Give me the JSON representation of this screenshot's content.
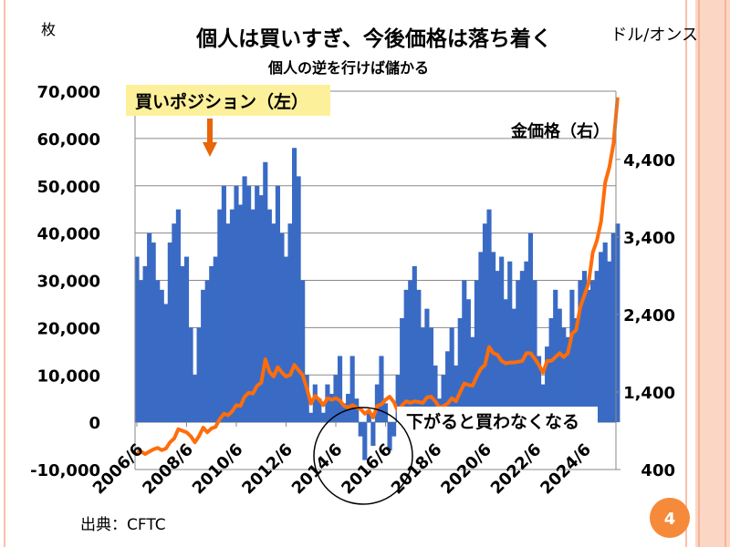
{
  "slide": {
    "page_number": "4",
    "source": "出典：CFTC",
    "accent_color": "#f58a3a",
    "border_color": "#f9c0a8"
  },
  "chart_data": {
    "type": "bar+line",
    "title": "個人は買いすぎ、今後価格は落ち着く",
    "subtitle": "個人の逆を行けば儲かる",
    "y_left_unit": "枚",
    "y_right_unit": "ドル/オンス",
    "ylim_left": [
      -10000,
      70000
    ],
    "ylim_right": [
      400,
      5280
    ],
    "y_left_ticks": [
      "-10,000",
      "0",
      "10,000",
      "20,000",
      "30,000",
      "40,000",
      "50,000",
      "60,000",
      "70,000"
    ],
    "y_left_tick_values": [
      -10000,
      0,
      10000,
      20000,
      30000,
      40000,
      50000,
      60000,
      70000
    ],
    "y_right_ticks": [
      "400",
      "1,400",
      "2,400",
      "3,400",
      "4,400"
    ],
    "y_right_tick_values": [
      400,
      1400,
      2400,
      3400,
      4400
    ],
    "x_ticks": [
      "2006/6",
      "2008/6",
      "2010/6",
      "2012/6",
      "2014/6",
      "2016/6",
      "2018/6",
      "2020/6",
      "2022/6",
      "2024/6"
    ],
    "grid": true,
    "annotations": {
      "position_label": "買いポジション（左）",
      "gold_label": "金価格（右）",
      "callout": "下がると買わなくなる"
    },
    "colors": {
      "bars": "#3a6bc4",
      "line": "#ff6d0a",
      "position_label_bg": "#fdf09b",
      "arrow": "#e8650a"
    },
    "x": [
      "2006/6",
      "2006/8",
      "2006/10",
      "2006/12",
      "2007/2",
      "2007/4",
      "2007/6",
      "2007/8",
      "2007/10",
      "2007/12",
      "2008/2",
      "2008/4",
      "2008/6",
      "2008/8",
      "2008/10",
      "2008/12",
      "2009/2",
      "2009/4",
      "2009/6",
      "2009/8",
      "2009/10",
      "2009/12",
      "2010/2",
      "2010/4",
      "2010/6",
      "2010/8",
      "2010/10",
      "2010/12",
      "2011/2",
      "2011/4",
      "2011/6",
      "2011/8",
      "2011/10",
      "2011/12",
      "2012/2",
      "2012/4",
      "2012/6",
      "2012/8",
      "2012/10",
      "2012/12",
      "2013/2",
      "2013/4",
      "2013/6",
      "2013/8",
      "2013/10",
      "2013/12",
      "2014/2",
      "2014/4",
      "2014/6",
      "2014/8",
      "2014/10",
      "2014/12",
      "2015/2",
      "2015/4",
      "2015/6",
      "2015/8",
      "2015/10",
      "2015/12",
      "2016/2",
      "2016/4",
      "2016/6",
      "2016/8",
      "2016/10",
      "2016/12",
      "2017/2",
      "2017/4",
      "2017/6",
      "2017/8",
      "2017/10",
      "2017/12",
      "2018/2",
      "2018/4",
      "2018/6",
      "2018/8",
      "2018/10",
      "2018/12",
      "2019/2",
      "2019/4",
      "2019/6",
      "2019/8",
      "2019/10",
      "2019/12",
      "2020/2",
      "2020/4",
      "2020/6",
      "2020/8",
      "2020/10",
      "2020/12",
      "2021/2",
      "2021/4",
      "2021/6",
      "2021/8",
      "2021/10",
      "2021/12",
      "2022/2",
      "2022/4",
      "2022/6",
      "2022/8",
      "2022/10",
      "2022/12",
      "2023/2",
      "2023/4",
      "2023/6",
      "2023/8",
      "2023/10",
      "2023/12",
      "2024/2",
      "2024/4",
      "2024/6",
      "2024/8",
      "2024/10",
      "2024/12",
      "2025/2",
      "2025/4",
      "2025/6",
      "2025/8",
      "2025/10"
    ],
    "series": [
      {
        "name": "買いポジション（左）",
        "axis": "left",
        "kind": "bar",
        "values": [
          35000,
          30000,
          33000,
          40000,
          38000,
          30000,
          28000,
          25000,
          38000,
          42000,
          45000,
          33000,
          35000,
          20000,
          10000,
          20000,
          28000,
          30000,
          33000,
          35000,
          45000,
          50000,
          42000,
          45000,
          50000,
          46000,
          52000,
          50000,
          45000,
          50000,
          48000,
          55000,
          45000,
          42000,
          50000,
          40000,
          35000,
          42000,
          58000,
          52000,
          30000,
          10000,
          2000,
          8000,
          5000,
          2000,
          8000,
          6000,
          10000,
          14000,
          4000,
          6000,
          14000,
          5000,
          -3000,
          -8000,
          2000,
          -5000,
          8000,
          14000,
          4000,
          -6000,
          -3000,
          10000,
          22000,
          28000,
          30000,
          33000,
          28000,
          20000,
          24000,
          20000,
          12000,
          5000,
          10000,
          15000,
          20000,
          12000,
          22000,
          30000,
          26000,
          18000,
          30000,
          36000,
          42000,
          45000,
          36000,
          32000,
          35000,
          26000,
          34000,
          24000,
          30000,
          32000,
          34000,
          40000,
          30000,
          14000,
          8000,
          16000,
          22000,
          28000,
          24000,
          20000,
          18000,
          28000,
          22000,
          30000,
          32000,
          28000,
          30000,
          32000,
          36000,
          38000,
          34000,
          40000,
          42000
        ]
      },
      {
        "name": "金価格（右）",
        "axis": "right",
        "kind": "line",
        "values": [
          620,
          630,
          600,
          630,
          660,
          680,
          650,
          670,
          750,
          800,
          920,
          900,
          880,
          830,
          750,
          830,
          940,
          880,
          930,
          950,
          1050,
          1120,
          1100,
          1150,
          1230,
          1220,
          1340,
          1390,
          1380,
          1480,
          1520,
          1820,
          1660,
          1600,
          1720,
          1650,
          1600,
          1620,
          1750,
          1680,
          1620,
          1450,
          1250,
          1350,
          1300,
          1230,
          1320,
          1300,
          1320,
          1290,
          1220,
          1200,
          1230,
          1200,
          1180,
          1120,
          1160,
          1070,
          1220,
          1240,
          1300,
          1340,
          1270,
          1150,
          1230,
          1280,
          1260,
          1280,
          1270,
          1260,
          1330,
          1340,
          1280,
          1200,
          1220,
          1250,
          1320,
          1280,
          1400,
          1510,
          1490,
          1480,
          1600,
          1700,
          1750,
          1980,
          1900,
          1880,
          1800,
          1770,
          1780,
          1780,
          1790,
          1800,
          1900,
          1900,
          1830,
          1750,
          1650,
          1800,
          1800,
          1850,
          1900,
          1850,
          1900,
          2150,
          2200,
          2500,
          2650,
          2800,
          3200,
          3350,
          3600,
          4100,
          4300,
          4600,
          5200
        ]
      }
    ]
  }
}
